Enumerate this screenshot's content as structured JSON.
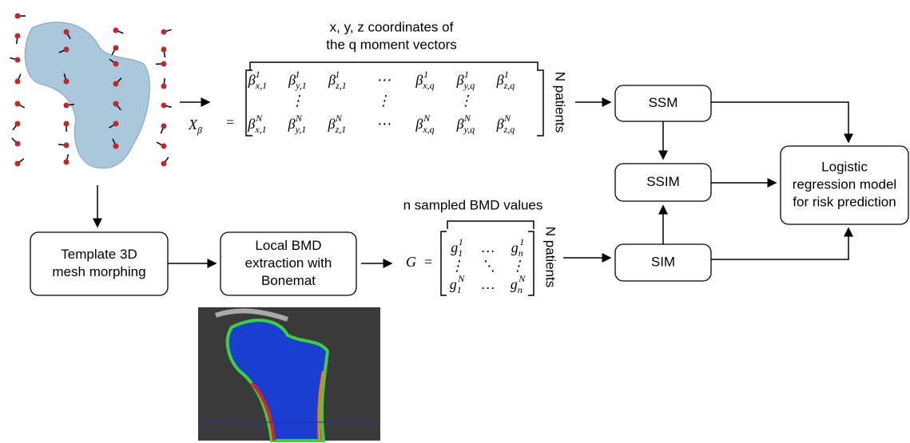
{
  "annotations": {
    "moment_header": [
      "x, y, z coordinates of",
      "the q moment vectors"
    ],
    "patients_top": "N patients",
    "bmd_header": "n sampled BMD values",
    "patients_bottom": "N patients"
  },
  "matrix_x": {
    "lhs": {
      "base": "X",
      "sub": "β"
    },
    "eq": "=",
    "rows": [
      [
        {
          "base": "β",
          "sub": "x,1",
          "sup": "1"
        },
        {
          "base": "β",
          "sub": "y,1",
          "sup": "1"
        },
        {
          "base": "β",
          "sub": "z,1",
          "sup": "1"
        },
        "⋯",
        {
          "base": "β",
          "sub": "x,q",
          "sup": "1"
        },
        {
          "base": "β",
          "sub": "y,q",
          "sup": "1"
        },
        {
          "base": "β",
          "sub": "z,q",
          "sup": "1"
        }
      ],
      [
        null,
        "⋮",
        null,
        "⋮",
        null,
        "⋮",
        null
      ],
      [
        {
          "base": "β",
          "sub": "x,1",
          "sup": "N"
        },
        {
          "base": "β",
          "sub": "y,1",
          "sup": "N"
        },
        {
          "base": "β",
          "sub": "z,1",
          "sup": "N"
        },
        "⋯",
        {
          "base": "β",
          "sub": "x,q",
          "sup": "N"
        },
        {
          "base": "β",
          "sub": "y,q",
          "sup": "N"
        },
        {
          "base": "β",
          "sub": "z,q",
          "sup": "N"
        }
      ]
    ]
  },
  "matrix_g": {
    "lhs": {
      "base": "G"
    },
    "eq": "=",
    "rows": [
      [
        {
          "base": "g",
          "sub": "1",
          "sup": "1"
        },
        "…",
        {
          "base": "g",
          "sub": "n",
          "sup": "1"
        }
      ],
      [
        "⋮",
        "⋱",
        "⋮"
      ],
      [
        {
          "base": "g",
          "sub": "1",
          "sup": "N"
        },
        "…",
        {
          "base": "g",
          "sub": "n",
          "sup": "N"
        }
      ]
    ]
  },
  "nodes": [
    {
      "id": "template",
      "label": [
        "Template 3D",
        "mesh morphing"
      ]
    },
    {
      "id": "bmd",
      "label": [
        "Local BMD",
        "extraction with",
        "Bonemat"
      ]
    },
    {
      "id": "ssm",
      "label": [
        "SSM"
      ]
    },
    {
      "id": "ssim",
      "label": [
        "SSIM"
      ]
    },
    {
      "id": "sim",
      "label": [
        "SIM"
      ]
    },
    {
      "id": "logistic",
      "label": [
        "Logistic",
        "regression model",
        "for risk prediction"
      ]
    }
  ]
}
